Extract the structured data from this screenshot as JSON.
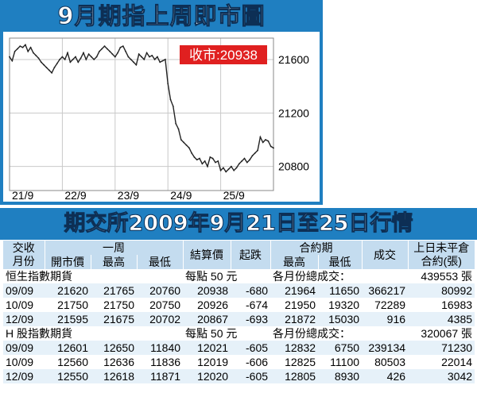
{
  "chart_data": {
    "type": "line",
    "title": "9月期指上周即市圖",
    "close_label": "收市:20938",
    "x_ticks": [
      "21/9",
      "22/9",
      "23/9",
      "24/9",
      "25/9"
    ],
    "y_ticks": [
      "21600",
      "21200",
      "20800"
    ],
    "ylim": [
      20620,
      21760
    ],
    "grid": true,
    "series": [
      {
        "x": [
          0,
          0.05,
          0.1,
          0.15,
          0.2,
          0.25,
          0.3,
          0.35,
          0.4,
          0.45,
          0.5,
          0.55,
          0.6,
          0.65,
          0.7,
          0.75,
          0.8,
          0.85,
          0.9,
          0.95,
          1,
          1.05,
          1.1,
          1.15,
          1.2,
          1.25,
          1.3,
          1.35,
          1.4,
          1.45,
          1.5,
          1.55,
          1.6,
          1.65,
          1.7,
          1.75,
          1.8,
          1.85,
          1.9,
          1.95,
          2,
          2.05,
          2.1,
          2.15,
          2.2,
          2.25,
          2.3,
          2.35,
          2.4,
          2.45,
          2.5,
          2.55,
          2.6,
          2.65,
          2.7,
          2.75,
          2.8,
          2.85,
          2.9,
          2.95,
          3,
          3.05,
          3.1,
          3.15,
          3.2,
          3.25,
          3.3,
          3.35,
          3.4,
          3.45,
          3.5,
          3.55,
          3.6,
          3.65,
          3.7,
          3.75,
          3.8,
          3.85,
          3.9,
          3.95,
          4,
          4.05,
          4.1,
          4.15,
          4.2,
          4.25,
          4.3,
          4.35,
          4.4,
          4.45,
          4.5,
          4.55,
          4.6,
          4.65,
          4.7,
          4.75,
          4.8,
          4.85,
          4.9,
          4.95,
          5
        ],
        "y": [
          21620,
          21590,
          21660,
          21680,
          21700,
          21690,
          21710,
          21660,
          21690,
          21650,
          21630,
          21610,
          21580,
          21560,
          21540,
          21520,
          21500,
          21540,
          21570,
          21600,
          21620,
          21600,
          21650,
          21580,
          21600,
          21620,
          21580,
          21610,
          21650,
          21600,
          21640,
          21620,
          21600,
          21620,
          21660,
          21680,
          21700,
          21680,
          21660,
          21640,
          21620,
          21650,
          21690,
          21700,
          21660,
          21620,
          21600,
          21580,
          21560,
          21640,
          21620,
          21600,
          21650,
          21620,
          21630,
          21600,
          21620,
          21580,
          21590,
          21600,
          21420,
          21300,
          21250,
          21120,
          21080,
          21000,
          20980,
          20960,
          20940,
          20900,
          20870,
          20850,
          20860,
          20820,
          20840,
          20800,
          20870,
          20860,
          20830,
          20840,
          20770,
          20790,
          20760,
          20780,
          20800,
          20770,
          20790,
          20820,
          20840,
          20860,
          20830,
          20850,
          20880,
          20900,
          20920,
          21020,
          20980,
          21000,
          20990,
          20950,
          20938
        ]
      }
    ]
  },
  "table": {
    "title": "期交所2009年9月21日至25日行情",
    "headers": {
      "contract_month": "交收\n月份",
      "week": "一周",
      "open": "開市價",
      "high": "最高",
      "low": "最低",
      "settlement": "結算價",
      "change": "起跌",
      "contract_period": "合約期",
      "cp_high": "最高",
      "cp_low": "最低",
      "volume": "成交",
      "open_interest": "上日未平倉\n合約(張)"
    },
    "groups": [
      {
        "name": "恒生指數期貨",
        "per_point": "每點 50 元",
        "total_label": "各月份總成交：",
        "total_value": "439553 張",
        "rows": [
          [
            "09/09",
            "21620",
            "21765",
            "20760",
            "20938",
            "-680",
            "21964",
            "11650",
            "366217",
            "80992"
          ],
          [
            "10/09",
            "21750",
            "21750",
            "20750",
            "20926",
            "-674",
            "21950",
            "19320",
            "72289",
            "16983"
          ],
          [
            "12/09",
            "21595",
            "21675",
            "20702",
            "20867",
            "-693",
            "21872",
            "15030",
            "916",
            "4385"
          ]
        ]
      },
      {
        "name": "H 股指數期貨",
        "per_point": "每點 50 元",
        "total_label": "各月份總成交：",
        "total_value": "320067 張",
        "rows": [
          [
            "09/09",
            "12601",
            "12650",
            "11840",
            "12021",
            "-605",
            "12832",
            "6750",
            "239134",
            "71230"
          ],
          [
            "10/09",
            "12560",
            "12636",
            "11836",
            "12019",
            "-606",
            "12825",
            "11100",
            "80503",
            "22014"
          ],
          [
            "12/09",
            "12550",
            "12618",
            "11871",
            "12020",
            "-605",
            "12805",
            "8930",
            "426",
            "3042"
          ]
        ]
      }
    ]
  }
}
